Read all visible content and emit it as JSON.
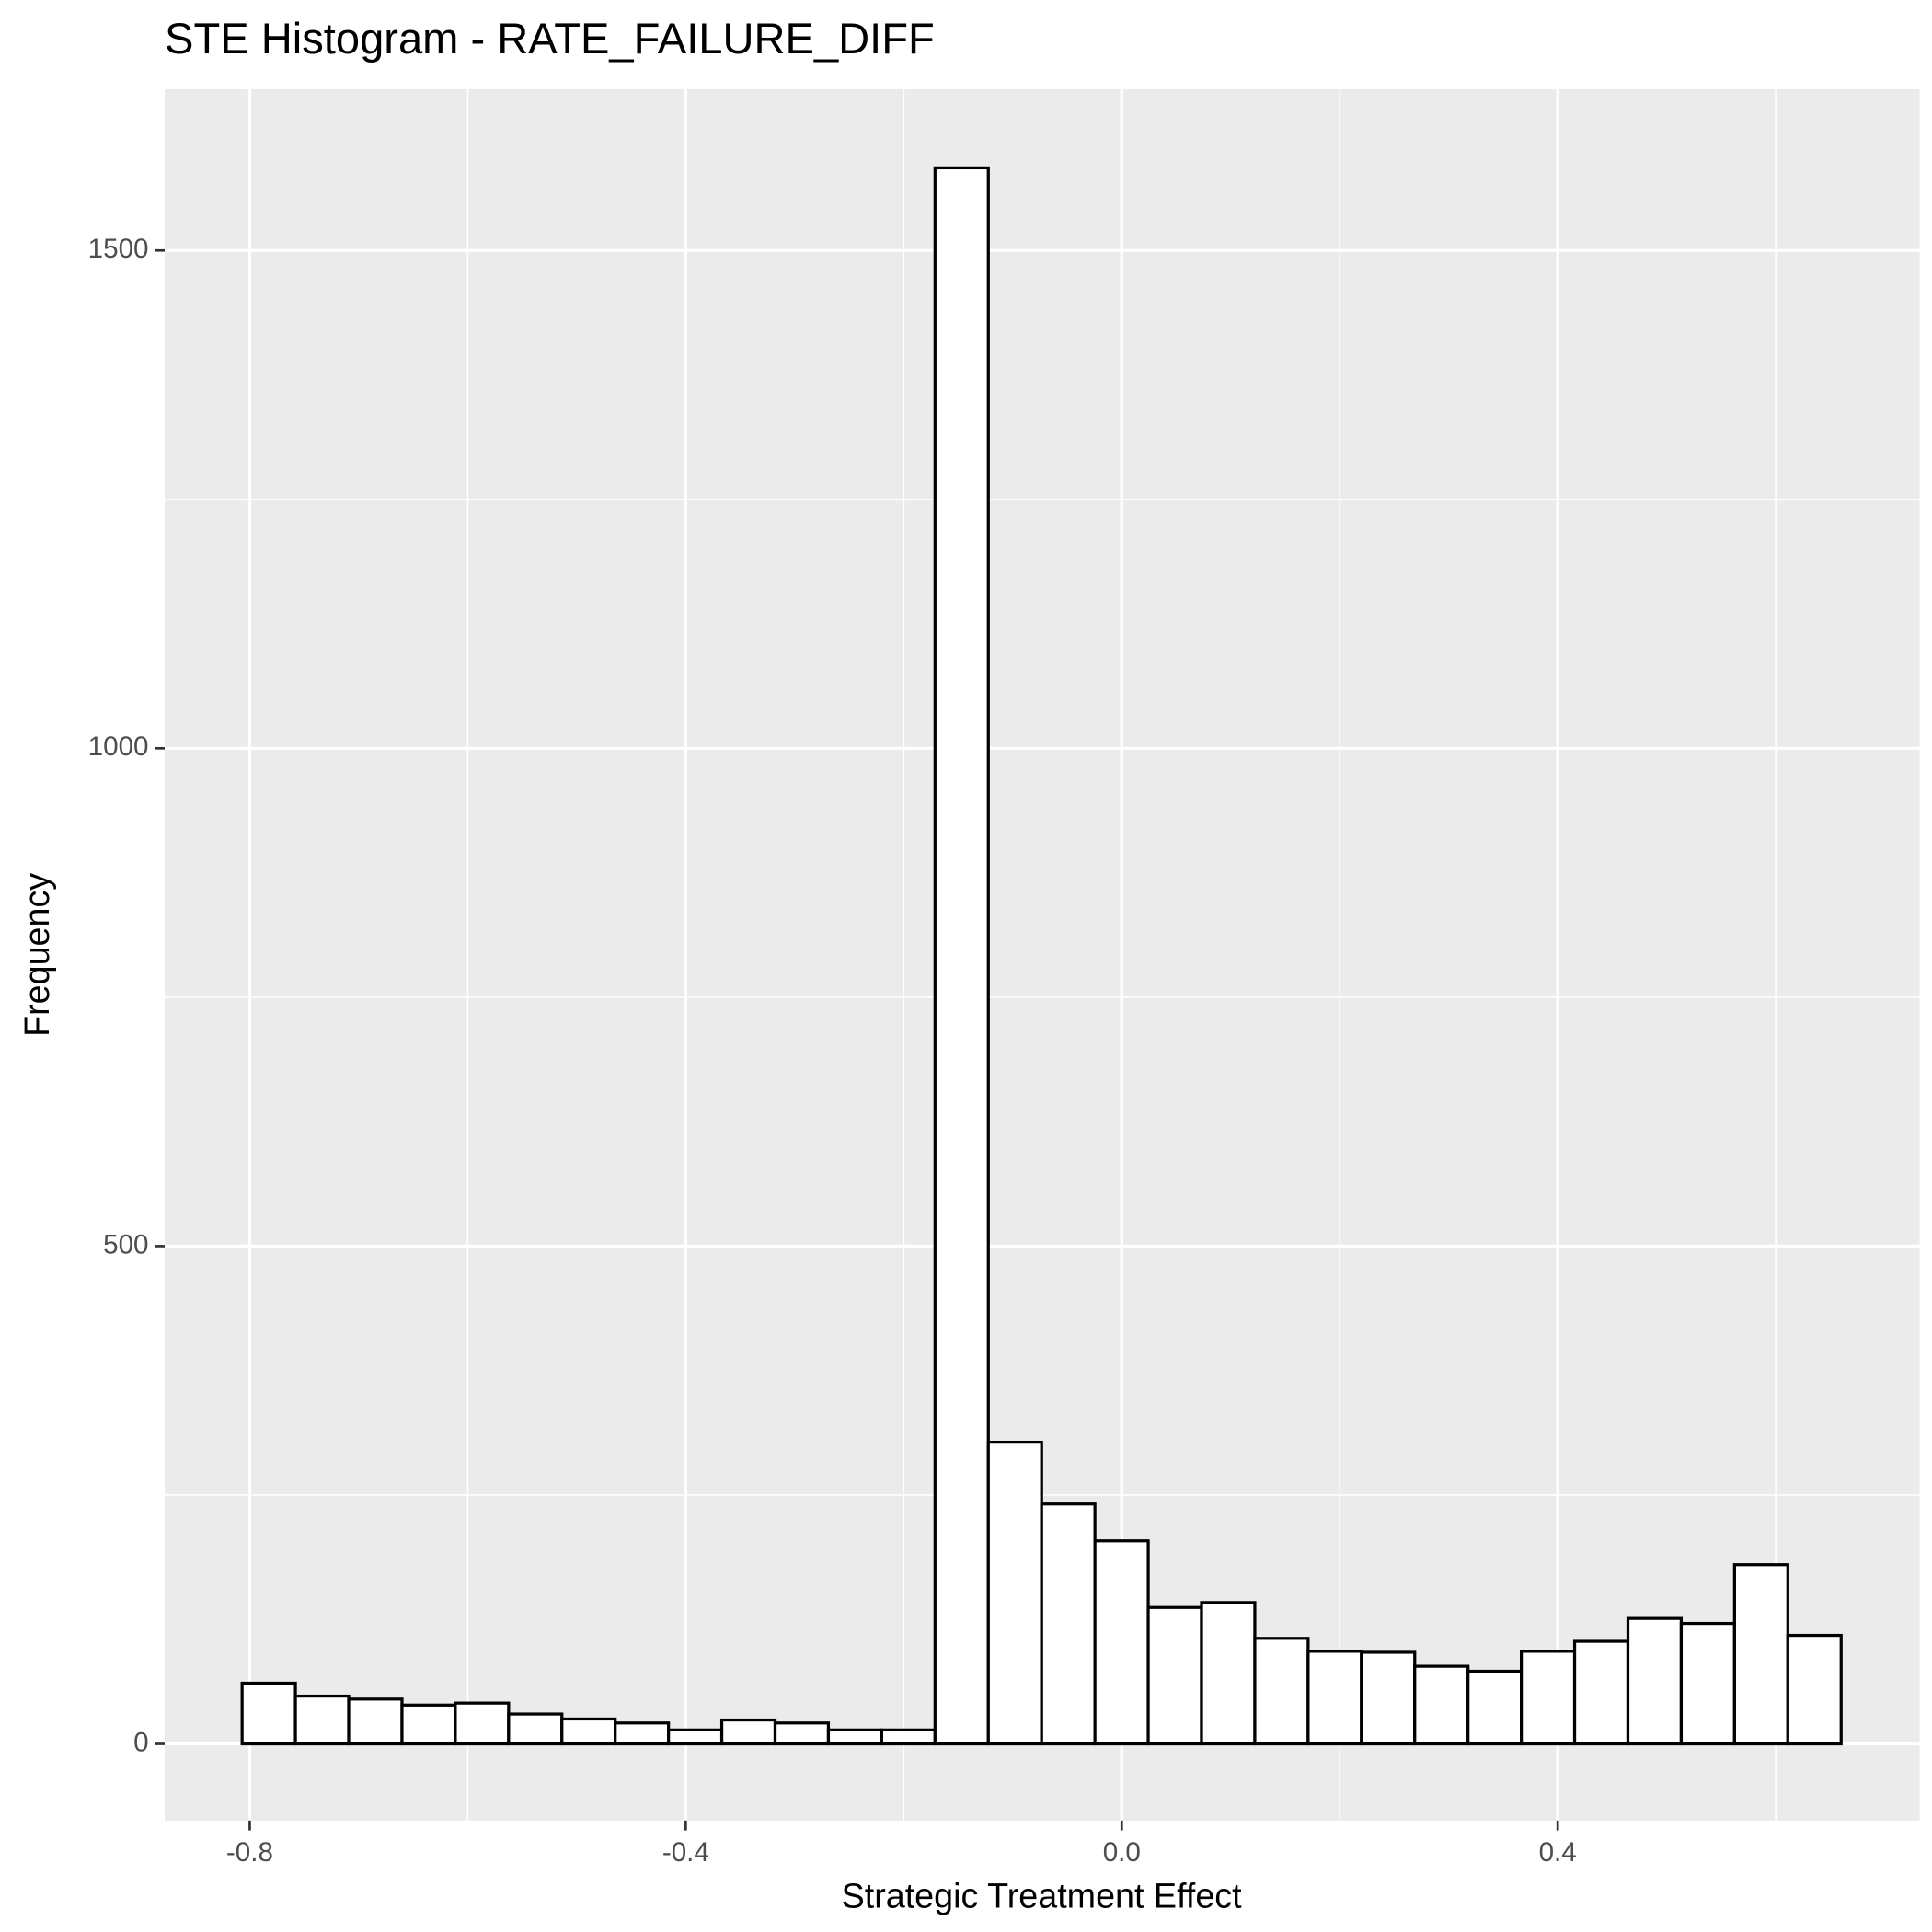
{
  "chart_data": {
    "type": "histogram",
    "title": "STE Histogram -  RATE_FAILURE_DIFF",
    "x_label": "Strategic Treatment Effect",
    "y_label": "Frequency",
    "bins": [
      -0.807,
      -0.7581,
      -0.7092,
      -0.6603,
      -0.6114,
      -0.5625,
      -0.5136,
      -0.4647,
      -0.4158,
      -0.3669,
      -0.318,
      -0.2691,
      -0.2202,
      -0.1713,
      -0.1224,
      -0.0735,
      -0.0246,
      0.0243,
      0.0732,
      0.1221,
      0.171,
      0.2199,
      0.2688,
      0.3177,
      0.3666,
      0.4155,
      0.4644,
      0.5133,
      0.5622,
      0.6111,
      0.66
    ],
    "values": [
      61,
      48,
      45,
      39,
      41,
      30,
      25,
      21,
      14,
      24,
      21,
      14,
      14,
      1583,
      303,
      241,
      204,
      137,
      142,
      106,
      93,
      92,
      78,
      73,
      93,
      103,
      126,
      121,
      180,
      109
    ],
    "color": "#ffffff",
    "edge_color": "#000000",
    "xlim": [
      -0.878,
      0.732
    ],
    "ylim": [
      -77,
      1662
    ],
    "xticks": [
      -0.8,
      -0.4,
      {
        "value": 0,
        "label": "0.0"
      },
      0.4
    ],
    "yticks": [
      0,
      500,
      1000,
      1500
    ],
    "x_minor_grid": [
      -0.6,
      -0.2,
      0.2,
      0.6
    ],
    "y_minor_grid": [
      250,
      750,
      1250
    ],
    "grid": true
  }
}
